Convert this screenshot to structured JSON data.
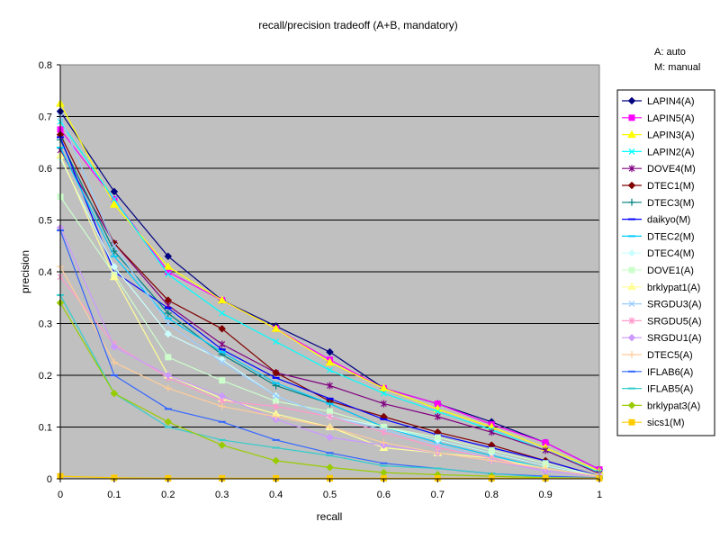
{
  "chart_data": {
    "type": "line",
    "title": "recall/precision tradeoff (A+B, mandatory)",
    "xlabel": "recall",
    "ylabel": "precision",
    "xlim": [
      0,
      1
    ],
    "ylim": [
      0,
      0.8
    ],
    "x_ticks": [
      "0",
      "0.1",
      "0.2",
      "0.3",
      "0.4",
      "0.5",
      "0.6",
      "0.7",
      "0.8",
      "0.9",
      "1"
    ],
    "y_ticks": [
      "0",
      "0.1",
      "0.2",
      "0.3",
      "0.4",
      "0.5",
      "0.6",
      "0.7",
      "0.8"
    ],
    "grid": "horizontal",
    "legend_position": "right",
    "notes": [
      "A: auto",
      "M: manual"
    ],
    "plot_background": "#c0c0c0",
    "x": [
      0,
      0.1,
      0.2,
      0.3,
      0.4,
      0.5,
      0.6,
      0.7,
      0.8,
      0.9,
      1.0
    ],
    "series": [
      {
        "name": "LAPIN4(A)",
        "color": "#000080",
        "marker": "diamond",
        "values": [
          0.71,
          0.555,
          0.43,
          0.345,
          0.295,
          0.245,
          0.175,
          0.145,
          0.11,
          0.07,
          0.018
        ]
      },
      {
        "name": "LAPIN5(A)",
        "color": "#ff00ff",
        "marker": "square",
        "values": [
          0.675,
          0.54,
          0.4,
          0.345,
          0.29,
          0.23,
          0.175,
          0.145,
          0.105,
          0.07,
          0.018
        ]
      },
      {
        "name": "LAPIN3(A)",
        "color": "#ffff00",
        "marker": "triangle",
        "values": [
          0.725,
          0.53,
          0.41,
          0.345,
          0.29,
          0.225,
          0.175,
          0.135,
          0.1,
          0.06,
          0.015
        ]
      },
      {
        "name": "LAPIN2(A)",
        "color": "#00ffff",
        "marker": "x",
        "values": [
          0.69,
          0.54,
          0.395,
          0.32,
          0.265,
          0.21,
          0.165,
          0.13,
          0.095,
          0.055,
          0.012
        ]
      },
      {
        "name": "DOVE4(M)",
        "color": "#800080",
        "marker": "star",
        "values": [
          0.635,
          0.455,
          0.335,
          0.26,
          0.205,
          0.18,
          0.145,
          0.12,
          0.09,
          0.055,
          0.01
        ]
      },
      {
        "name": "DTEC1(M)",
        "color": "#800000",
        "marker": "diamond",
        "values": [
          0.665,
          0.455,
          0.345,
          0.29,
          0.205,
          0.15,
          0.12,
          0.09,
          0.065,
          0.035,
          0.005
        ]
      },
      {
        "name": "DTEC3(M)",
        "color": "#008080",
        "marker": "plus",
        "values": [
          0.655,
          0.44,
          0.32,
          0.24,
          0.18,
          0.145,
          0.1,
          0.075,
          0.05,
          0.025,
          0.005
        ]
      },
      {
        "name": "daikyo(M)",
        "color": "#0000ff",
        "marker": "dash",
        "values": [
          0.66,
          0.4,
          0.33,
          0.25,
          0.195,
          0.155,
          0.115,
          0.085,
          0.06,
          0.035,
          0.005
        ]
      },
      {
        "name": "DTEC2(M)",
        "color": "#00ccff",
        "marker": "dash",
        "values": [
          0.64,
          0.43,
          0.31,
          0.245,
          0.185,
          0.145,
          0.1,
          0.07,
          0.045,
          0.02,
          0.005
        ]
      },
      {
        "name": "DTEC4(M)",
        "color": "#ccffff",
        "marker": "diamond",
        "values": [
          0.62,
          0.41,
          0.28,
          0.23,
          0.16,
          0.12,
          0.1,
          0.075,
          0.05,
          0.025,
          0.005
        ]
      },
      {
        "name": "DOVE1(A)",
        "color": "#ccffcc",
        "marker": "square",
        "values": [
          0.545,
          0.395,
          0.235,
          0.19,
          0.15,
          0.13,
          0.1,
          0.08,
          0.055,
          0.03,
          0.005
        ]
      },
      {
        "name": "brklypat1(A)",
        "color": "#ffff99",
        "marker": "triangle",
        "values": [
          0.625,
          0.39,
          0.2,
          0.155,
          0.125,
          0.1,
          0.06,
          0.05,
          0.04,
          0.02,
          0.005
        ]
      },
      {
        "name": "SRGDU3(A)",
        "color": "#99ccff",
        "marker": "x",
        "values": [
          0.7,
          0.45,
          0.3,
          0.225,
          0.16,
          0.12,
          0.095,
          0.065,
          0.04,
          0.015,
          0.005
        ]
      },
      {
        "name": "SRGDU5(A)",
        "color": "#ff99cc",
        "marker": "star",
        "values": [
          0.39,
          0.26,
          0.195,
          0.15,
          0.14,
          0.12,
          0.09,
          0.06,
          0.04,
          0.015,
          0.005
        ]
      },
      {
        "name": "SRGDU1(A)",
        "color": "#cc99ff",
        "marker": "diamond",
        "values": [
          0.485,
          0.255,
          0.2,
          0.16,
          0.115,
          0.08,
          0.065,
          0.05,
          0.035,
          0.015,
          0.005
        ]
      },
      {
        "name": "DTEC5(A)",
        "color": "#ffcc99",
        "marker": "plus",
        "values": [
          0.41,
          0.225,
          0.175,
          0.14,
          0.12,
          0.1,
          0.07,
          0.05,
          0.035,
          0.02,
          0.005
        ]
      },
      {
        "name": "IFLAB6(A)",
        "color": "#3366ff",
        "marker": "dash",
        "values": [
          0.48,
          0.2,
          0.135,
          0.11,
          0.075,
          0.05,
          0.03,
          0.02,
          0.01,
          0.005,
          0.002
        ]
      },
      {
        "name": "IFLAB5(A)",
        "color": "#33cccc",
        "marker": "dash",
        "values": [
          0.355,
          0.165,
          0.1,
          0.075,
          0.06,
          0.045,
          0.025,
          0.02,
          0.01,
          0.003,
          0.001
        ]
      },
      {
        "name": "brklypat3(A)",
        "color": "#99cc00",
        "marker": "diamond",
        "values": [
          0.34,
          0.165,
          0.11,
          0.065,
          0.035,
          0.022,
          0.012,
          0.008,
          0.005,
          0.002,
          0.001
        ]
      },
      {
        "name": "sics1(M)",
        "color": "#ffcc00",
        "marker": "square",
        "values": [
          0.005,
          0.002,
          0.001,
          0.001,
          0.001,
          0.001,
          0.001,
          0.001,
          0.001,
          0.001,
          0.001
        ]
      }
    ]
  }
}
